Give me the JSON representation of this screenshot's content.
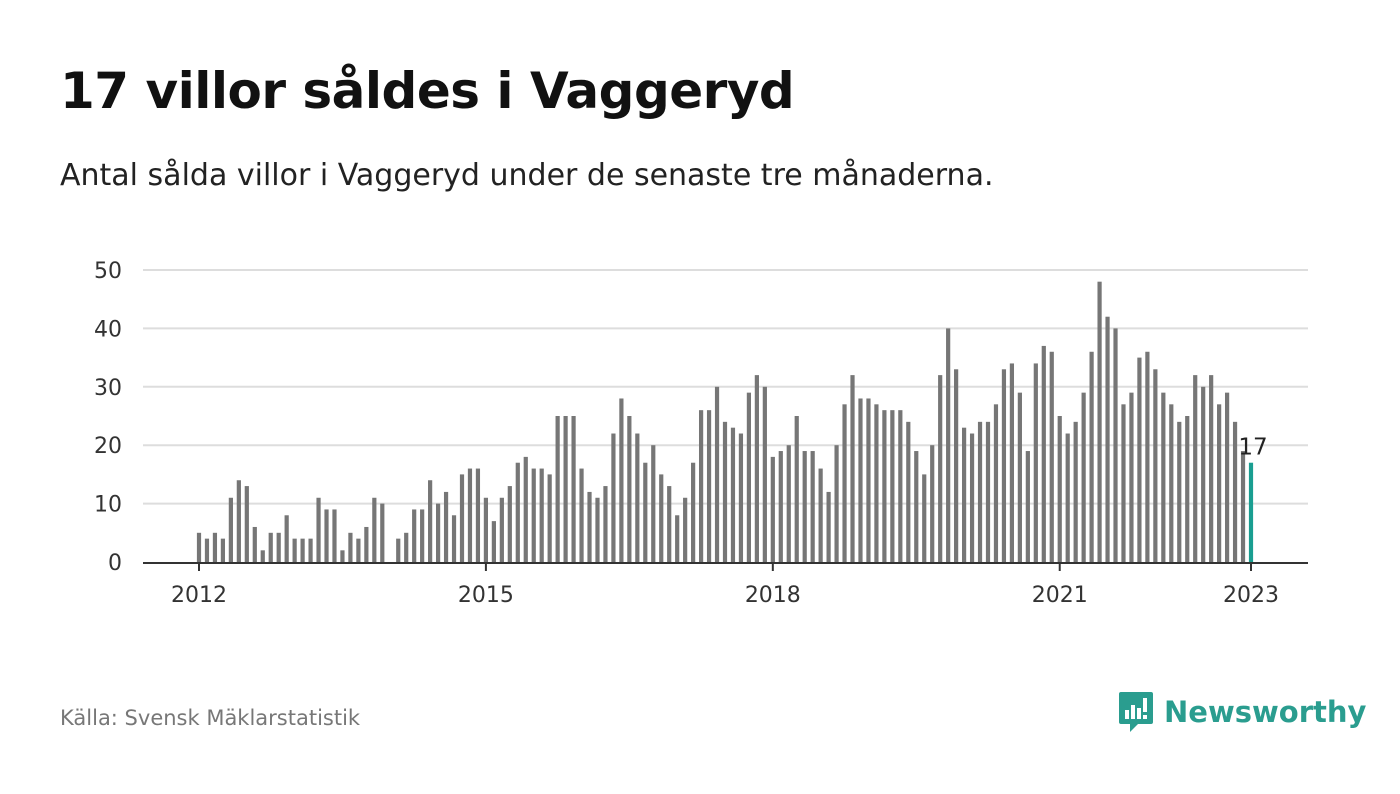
{
  "title": "17 villor såldes i Vaggeryd",
  "subtitle": "Antal sålda villor i Vaggeryd under de senaste tre månaderna.",
  "source": "Källa: Svensk Mäklarstatistik",
  "brand": {
    "name": "Newsworthy",
    "icon": "newsworthy-logo-icon",
    "color": "#2a9d8f"
  },
  "colors": {
    "bar": "#767676",
    "highlight": "#1a9e91",
    "grid": "#dddddd",
    "axis": "#333333"
  },
  "chart_data": {
    "type": "bar",
    "x_start": "2012-01",
    "x_end": "2023-01",
    "xticks": [
      "2012",
      "2015",
      "2018",
      "2021",
      "2023"
    ],
    "ylim": [
      0,
      50
    ],
    "yticks": [
      0,
      10,
      20,
      30,
      40,
      50
    ],
    "grid": true,
    "highlight_label": "17",
    "values": [
      5,
      4,
      5,
      4,
      11,
      14,
      13,
      6,
      2,
      5,
      5,
      8,
      4,
      4,
      4,
      11,
      9,
      9,
      2,
      5,
      4,
      6,
      11,
      10,
      null,
      4,
      5,
      9,
      9,
      14,
      10,
      12,
      8,
      15,
      16,
      16,
      11,
      7,
      11,
      13,
      17,
      18,
      16,
      16,
      15,
      25,
      25,
      25,
      16,
      12,
      11,
      13,
      22,
      28,
      25,
      22,
      17,
      20,
      15,
      13,
      8,
      11,
      17,
      26,
      26,
      30,
      24,
      23,
      22,
      29,
      32,
      30,
      18,
      19,
      20,
      25,
      19,
      19,
      16,
      12,
      20,
      27,
      32,
      28,
      28,
      27,
      26,
      26,
      26,
      24,
      19,
      15,
      20,
      32,
      40,
      33,
      23,
      22,
      24,
      24,
      27,
      33,
      34,
      29,
      19,
      34,
      37,
      36,
      25,
      22,
      24,
      29,
      36,
      48,
      42,
      40,
      27,
      29,
      35,
      36,
      33,
      29,
      27,
      24,
      25,
      32,
      30,
      32,
      27,
      29,
      24,
      19,
      17
    ]
  }
}
